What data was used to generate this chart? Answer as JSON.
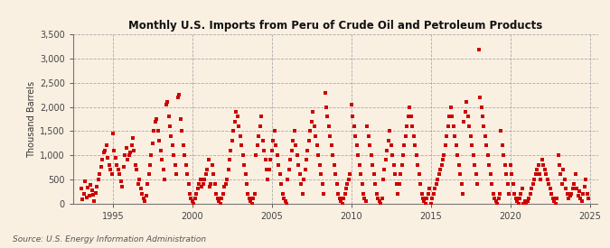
{
  "title": "Monthly U.S. Imports from Peru of Crude Oil and Petroleum Products",
  "ylabel": "Thousand Barrels",
  "source": "Source: U.S. Energy Information Administration",
  "background_color": "#FAF0E2",
  "marker_color": "#CC0000",
  "marker_size": 5,
  "xlim": [
    1992.5,
    2025.5
  ],
  "ylim": [
    0,
    3500
  ],
  "yticks": [
    0,
    500,
    1000,
    1500,
    2000,
    2500,
    3000,
    3500
  ],
  "xticks": [
    1995,
    2000,
    2005,
    2010,
    2015,
    2020,
    2025
  ],
  "data_points": [
    [
      1993.0,
      300
    ],
    [
      1993.083,
      80
    ],
    [
      1993.167,
      200
    ],
    [
      1993.25,
      450
    ],
    [
      1993.333,
      130
    ],
    [
      1993.417,
      320
    ],
    [
      1993.5,
      150
    ],
    [
      1993.583,
      380
    ],
    [
      1993.667,
      280
    ],
    [
      1993.75,
      180
    ],
    [
      1993.833,
      50
    ],
    [
      1993.917,
      220
    ],
    [
      1994.0,
      350
    ],
    [
      1994.083,
      500
    ],
    [
      1994.167,
      600
    ],
    [
      1994.25,
      750
    ],
    [
      1994.333,
      900
    ],
    [
      1994.417,
      1050
    ],
    [
      1994.5,
      1100
    ],
    [
      1994.583,
      1200
    ],
    [
      1994.667,
      950
    ],
    [
      1994.75,
      800
    ],
    [
      1994.833,
      700
    ],
    [
      1994.917,
      600
    ],
    [
      1995.0,
      1450
    ],
    [
      1995.083,
      1100
    ],
    [
      1995.167,
      950
    ],
    [
      1995.25,
      800
    ],
    [
      1995.333,
      700
    ],
    [
      1995.417,
      600
    ],
    [
      1995.5,
      450
    ],
    [
      1995.583,
      350
    ],
    [
      1995.667,
      750
    ],
    [
      1995.75,
      1000
    ],
    [
      1995.833,
      1150
    ],
    [
      1995.917,
      900
    ],
    [
      1996.0,
      1000
    ],
    [
      1996.083,
      1050
    ],
    [
      1996.167,
      1200
    ],
    [
      1996.25,
      1350
    ],
    [
      1996.333,
      1100
    ],
    [
      1996.417,
      800
    ],
    [
      1996.5,
      700
    ],
    [
      1996.583,
      400
    ],
    [
      1996.667,
      500
    ],
    [
      1996.75,
      300
    ],
    [
      1996.833,
      200
    ],
    [
      1996.917,
      100
    ],
    [
      1997.0,
      50
    ],
    [
      1997.083,
      150
    ],
    [
      1997.167,
      400
    ],
    [
      1997.25,
      600
    ],
    [
      1997.333,
      800
    ],
    [
      1997.417,
      1000
    ],
    [
      1997.5,
      1250
    ],
    [
      1997.583,
      1500
    ],
    [
      1997.667,
      1700
    ],
    [
      1997.75,
      1750
    ],
    [
      1997.833,
      1500
    ],
    [
      1997.917,
      1300
    ],
    [
      1998.0,
      1100
    ],
    [
      1998.083,
      900
    ],
    [
      1998.167,
      700
    ],
    [
      1998.25,
      500
    ],
    [
      1998.333,
      2050
    ],
    [
      1998.417,
      2100
    ],
    [
      1998.5,
      1800
    ],
    [
      1998.583,
      1600
    ],
    [
      1998.667,
      1400
    ],
    [
      1998.75,
      1200
    ],
    [
      1998.833,
      1000
    ],
    [
      1998.917,
      800
    ],
    [
      1999.0,
      600
    ],
    [
      1999.083,
      2200
    ],
    [
      1999.167,
      2250
    ],
    [
      1999.25,
      1750
    ],
    [
      1999.333,
      1500
    ],
    [
      1999.417,
      1200
    ],
    [
      1999.5,
      1000
    ],
    [
      1999.583,
      800
    ],
    [
      1999.667,
      600
    ],
    [
      1999.75,
      400
    ],
    [
      1999.833,
      200
    ],
    [
      1999.917,
      100
    ],
    [
      2000.0,
      50
    ],
    [
      2000.083,
      0
    ],
    [
      2000.167,
      100
    ],
    [
      2000.25,
      200
    ],
    [
      2000.333,
      300
    ],
    [
      2000.417,
      400
    ],
    [
      2000.5,
      500
    ],
    [
      2000.583,
      350
    ],
    [
      2000.667,
      400
    ],
    [
      2000.75,
      500
    ],
    [
      2000.833,
      600
    ],
    [
      2000.917,
      700
    ],
    [
      2001.0,
      900
    ],
    [
      2001.083,
      350
    ],
    [
      2001.167,
      400
    ],
    [
      2001.25,
      800
    ],
    [
      2001.333,
      600
    ],
    [
      2001.417,
      400
    ],
    [
      2001.5,
      200
    ],
    [
      2001.583,
      100
    ],
    [
      2001.667,
      50
    ],
    [
      2001.75,
      0
    ],
    [
      2001.833,
      100
    ],
    [
      2001.917,
      200
    ],
    [
      2002.0,
      350
    ],
    [
      2002.083,
      400
    ],
    [
      2002.167,
      500
    ],
    [
      2002.25,
      700
    ],
    [
      2002.333,
      900
    ],
    [
      2002.417,
      1100
    ],
    [
      2002.5,
      1300
    ],
    [
      2002.583,
      1500
    ],
    [
      2002.667,
      1700
    ],
    [
      2002.75,
      1900
    ],
    [
      2002.833,
      1800
    ],
    [
      2002.917,
      1600
    ],
    [
      2003.0,
      1400
    ],
    [
      2003.083,
      1200
    ],
    [
      2003.167,
      1000
    ],
    [
      2003.25,
      800
    ],
    [
      2003.333,
      600
    ],
    [
      2003.417,
      400
    ],
    [
      2003.5,
      200
    ],
    [
      2003.583,
      100
    ],
    [
      2003.667,
      50
    ],
    [
      2003.75,
      0
    ],
    [
      2003.833,
      100
    ],
    [
      2003.917,
      200
    ],
    [
      2004.0,
      1000
    ],
    [
      2004.083,
      1200
    ],
    [
      2004.167,
      1400
    ],
    [
      2004.25,
      1600
    ],
    [
      2004.333,
      1800
    ],
    [
      2004.417,
      1300
    ],
    [
      2004.5,
      1100
    ],
    [
      2004.583,
      900
    ],
    [
      2004.667,
      700
    ],
    [
      2004.75,
      500
    ],
    [
      2004.833,
      700
    ],
    [
      2004.917,
      900
    ],
    [
      2005.0,
      1100
    ],
    [
      2005.083,
      1300
    ],
    [
      2005.167,
      1500
    ],
    [
      2005.25,
      1200
    ],
    [
      2005.333,
      1000
    ],
    [
      2005.417,
      800
    ],
    [
      2005.5,
      600
    ],
    [
      2005.583,
      400
    ],
    [
      2005.667,
      200
    ],
    [
      2005.75,
      100
    ],
    [
      2005.833,
      50
    ],
    [
      2005.917,
      0
    ],
    [
      2006.0,
      500
    ],
    [
      2006.083,
      700
    ],
    [
      2006.167,
      900
    ],
    [
      2006.25,
      1100
    ],
    [
      2006.333,
      1300
    ],
    [
      2006.417,
      1500
    ],
    [
      2006.5,
      1200
    ],
    [
      2006.583,
      1000
    ],
    [
      2006.667,
      800
    ],
    [
      2006.75,
      600
    ],
    [
      2006.833,
      400
    ],
    [
      2006.917,
      200
    ],
    [
      2007.0,
      500
    ],
    [
      2007.083,
      700
    ],
    [
      2007.167,
      900
    ],
    [
      2007.25,
      1100
    ],
    [
      2007.333,
      1300
    ],
    [
      2007.417,
      1500
    ],
    [
      2007.5,
      1700
    ],
    [
      2007.583,
      1900
    ],
    [
      2007.667,
      1600
    ],
    [
      2007.75,
      1400
    ],
    [
      2007.833,
      1200
    ],
    [
      2007.917,
      1000
    ],
    [
      2008.0,
      800
    ],
    [
      2008.083,
      600
    ],
    [
      2008.167,
      400
    ],
    [
      2008.25,
      200
    ],
    [
      2008.333,
      2300
    ],
    [
      2008.417,
      2000
    ],
    [
      2008.5,
      1800
    ],
    [
      2008.583,
      1600
    ],
    [
      2008.667,
      1400
    ],
    [
      2008.75,
      1200
    ],
    [
      2008.833,
      1000
    ],
    [
      2008.917,
      800
    ],
    [
      2009.0,
      600
    ],
    [
      2009.083,
      400
    ],
    [
      2009.167,
      200
    ],
    [
      2009.25,
      100
    ],
    [
      2009.333,
      50
    ],
    [
      2009.417,
      0
    ],
    [
      2009.5,
      100
    ],
    [
      2009.583,
      200
    ],
    [
      2009.667,
      300
    ],
    [
      2009.75,
      400
    ],
    [
      2009.833,
      500
    ],
    [
      2009.917,
      600
    ],
    [
      2010.0,
      2050
    ],
    [
      2010.083,
      1800
    ],
    [
      2010.167,
      1600
    ],
    [
      2010.25,
      1400
    ],
    [
      2010.333,
      1200
    ],
    [
      2010.417,
      1000
    ],
    [
      2010.5,
      800
    ],
    [
      2010.583,
      600
    ],
    [
      2010.667,
      400
    ],
    [
      2010.75,
      200
    ],
    [
      2010.833,
      100
    ],
    [
      2010.917,
      50
    ],
    [
      2011.0,
      1600
    ],
    [
      2011.083,
      1400
    ],
    [
      2011.167,
      1200
    ],
    [
      2011.25,
      1000
    ],
    [
      2011.333,
      800
    ],
    [
      2011.417,
      600
    ],
    [
      2011.5,
      400
    ],
    [
      2011.583,
      200
    ],
    [
      2011.667,
      100
    ],
    [
      2011.75,
      50
    ],
    [
      2011.833,
      0
    ],
    [
      2011.917,
      100
    ],
    [
      2012.0,
      500
    ],
    [
      2012.083,
      700
    ],
    [
      2012.167,
      900
    ],
    [
      2012.25,
      1100
    ],
    [
      2012.333,
      1300
    ],
    [
      2012.417,
      1500
    ],
    [
      2012.5,
      1200
    ],
    [
      2012.583,
      1000
    ],
    [
      2012.667,
      800
    ],
    [
      2012.75,
      600
    ],
    [
      2012.833,
      400
    ],
    [
      2012.917,
      200
    ],
    [
      2013.0,
      400
    ],
    [
      2013.083,
      600
    ],
    [
      2013.167,
      800
    ],
    [
      2013.25,
      1000
    ],
    [
      2013.333,
      1200
    ],
    [
      2013.417,
      1400
    ],
    [
      2013.5,
      1600
    ],
    [
      2013.583,
      1800
    ],
    [
      2013.667,
      2000
    ],
    [
      2013.75,
      1800
    ],
    [
      2013.833,
      1600
    ],
    [
      2013.917,
      1400
    ],
    [
      2014.0,
      1200
    ],
    [
      2014.083,
      1000
    ],
    [
      2014.167,
      800
    ],
    [
      2014.25,
      600
    ],
    [
      2014.333,
      400
    ],
    [
      2014.417,
      200
    ],
    [
      2014.5,
      100
    ],
    [
      2014.583,
      50
    ],
    [
      2014.667,
      0
    ],
    [
      2014.75,
      100
    ],
    [
      2014.833,
      200
    ],
    [
      2014.917,
      300
    ],
    [
      2015.0,
      0
    ],
    [
      2015.083,
      100
    ],
    [
      2015.167,
      200
    ],
    [
      2015.25,
      300
    ],
    [
      2015.333,
      400
    ],
    [
      2015.417,
      500
    ],
    [
      2015.5,
      600
    ],
    [
      2015.583,
      700
    ],
    [
      2015.667,
      800
    ],
    [
      2015.75,
      900
    ],
    [
      2015.833,
      1000
    ],
    [
      2015.917,
      1200
    ],
    [
      2016.0,
      1400
    ],
    [
      2016.083,
      1600
    ],
    [
      2016.167,
      1800
    ],
    [
      2016.25,
      2000
    ],
    [
      2016.333,
      1800
    ],
    [
      2016.417,
      1600
    ],
    [
      2016.5,
      1400
    ],
    [
      2016.583,
      1200
    ],
    [
      2016.667,
      1000
    ],
    [
      2016.75,
      800
    ],
    [
      2016.833,
      600
    ],
    [
      2016.917,
      400
    ],
    [
      2017.0,
      200
    ],
    [
      2017.083,
      1700
    ],
    [
      2017.167,
      1900
    ],
    [
      2017.25,
      2100
    ],
    [
      2017.333,
      1800
    ],
    [
      2017.417,
      1600
    ],
    [
      2017.5,
      1400
    ],
    [
      2017.583,
      1200
    ],
    [
      2017.667,
      1000
    ],
    [
      2017.75,
      800
    ],
    [
      2017.833,
      600
    ],
    [
      2017.917,
      400
    ],
    [
      2018.0,
      3200
    ],
    [
      2018.083,
      2200
    ],
    [
      2018.167,
      2000
    ],
    [
      2018.25,
      1800
    ],
    [
      2018.333,
      1600
    ],
    [
      2018.417,
      1400
    ],
    [
      2018.5,
      1200
    ],
    [
      2018.583,
      1000
    ],
    [
      2018.667,
      800
    ],
    [
      2018.75,
      600
    ],
    [
      2018.833,
      400
    ],
    [
      2018.917,
      200
    ],
    [
      2019.0,
      100
    ],
    [
      2019.083,
      50
    ],
    [
      2019.167,
      0
    ],
    [
      2019.25,
      100
    ],
    [
      2019.333,
      200
    ],
    [
      2019.417,
      1500
    ],
    [
      2019.5,
      1200
    ],
    [
      2019.583,
      1000
    ],
    [
      2019.667,
      800
    ],
    [
      2019.75,
      600
    ],
    [
      2019.833,
      400
    ],
    [
      2019.917,
      200
    ],
    [
      2020.0,
      800
    ],
    [
      2020.083,
      600
    ],
    [
      2020.167,
      400
    ],
    [
      2020.25,
      200
    ],
    [
      2020.333,
      100
    ],
    [
      2020.417,
      50
    ],
    [
      2020.5,
      0
    ],
    [
      2020.583,
      100
    ],
    [
      2020.667,
      200
    ],
    [
      2020.75,
      300
    ],
    [
      2020.833,
      0
    ],
    [
      2020.917,
      50
    ],
    [
      2021.0,
      0
    ],
    [
      2021.083,
      50
    ],
    [
      2021.167,
      100
    ],
    [
      2021.25,
      200
    ],
    [
      2021.333,
      300
    ],
    [
      2021.417,
      400
    ],
    [
      2021.5,
      500
    ],
    [
      2021.583,
      600
    ],
    [
      2021.667,
      700
    ],
    [
      2021.75,
      800
    ],
    [
      2021.833,
      600
    ],
    [
      2021.917,
      500
    ],
    [
      2022.0,
      900
    ],
    [
      2022.083,
      800
    ],
    [
      2022.167,
      700
    ],
    [
      2022.25,
      600
    ],
    [
      2022.333,
      500
    ],
    [
      2022.417,
      400
    ],
    [
      2022.5,
      300
    ],
    [
      2022.583,
      200
    ],
    [
      2022.667,
      100
    ],
    [
      2022.75,
      50
    ],
    [
      2022.833,
      0
    ],
    [
      2022.917,
      100
    ],
    [
      2023.0,
      1000
    ],
    [
      2023.083,
      800
    ],
    [
      2023.167,
      600
    ],
    [
      2023.25,
      400
    ],
    [
      2023.333,
      700
    ],
    [
      2023.417,
      500
    ],
    [
      2023.5,
      300
    ],
    [
      2023.583,
      200
    ],
    [
      2023.667,
      100
    ],
    [
      2023.75,
      150
    ],
    [
      2023.833,
      200
    ],
    [
      2023.917,
      300
    ],
    [
      2024.0,
      400
    ],
    [
      2024.083,
      600
    ],
    [
      2024.167,
      300
    ],
    [
      2024.25,
      150
    ],
    [
      2024.333,
      250
    ],
    [
      2024.417,
      100
    ],
    [
      2024.5,
      50
    ],
    [
      2024.583,
      200
    ],
    [
      2024.667,
      350
    ],
    [
      2024.75,
      500
    ],
    [
      2024.833,
      200
    ],
    [
      2024.917,
      100
    ]
  ]
}
